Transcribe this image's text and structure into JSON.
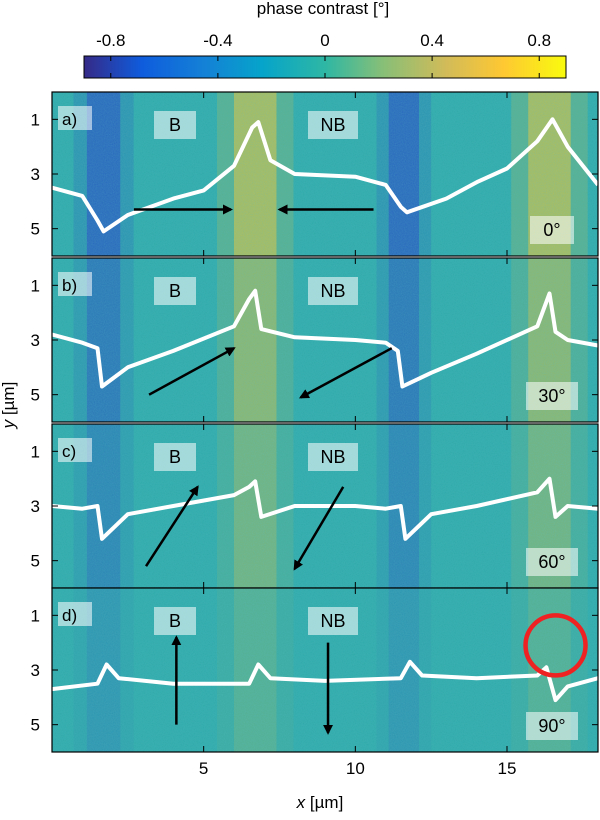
{
  "chart_data": {
    "type": "heatmap",
    "colorbar": {
      "label": "phase contrast [°]",
      "ticks": [
        "-0.8",
        "-0.4",
        "0",
        "0.4",
        "0.8"
      ],
      "range": [
        -0.9,
        0.9
      ],
      "colormap": "parula"
    },
    "xlabel_var": "x",
    "xlabel_unit": " [µm]",
    "ylabel_var": "y",
    "ylabel_unit": " [µm]",
    "x_ticks": [
      "5",
      "10",
      "15"
    ],
    "xlim": [
      0,
      18
    ],
    "y_ticks": [
      "1",
      "3",
      "5"
    ],
    "ylim": [
      0,
      6
    ],
    "panels": [
      {
        "tag": "a)",
        "angle": "0°",
        "label_b": "B",
        "label_nb": "NB",
        "stripe_amp": 1.0,
        "profile": [
          [
            0,
            3.5
          ],
          [
            1,
            3.8
          ],
          [
            1.5,
            4.7
          ],
          [
            1.7,
            5.1
          ],
          [
            2.5,
            4.5
          ],
          [
            4,
            3.9
          ],
          [
            5,
            3.6
          ],
          [
            6,
            2.7
          ],
          [
            6.6,
            1.3
          ],
          [
            6.8,
            1.1
          ],
          [
            7.2,
            2.5
          ],
          [
            8,
            3.0
          ],
          [
            10,
            3.1
          ],
          [
            11,
            3.4
          ],
          [
            11.5,
            4.2
          ],
          [
            11.7,
            4.4
          ],
          [
            13,
            3.9
          ],
          [
            14,
            3.3
          ],
          [
            15,
            2.8
          ],
          [
            16,
            1.8
          ],
          [
            16.5,
            1.0
          ],
          [
            17,
            2.0
          ],
          [
            18,
            3.4
          ]
        ],
        "arrows": [
          [
            2.7,
            4.3,
            5.9,
            4.3
          ],
          [
            10.6,
            4.3,
            7.5,
            4.3
          ]
        ],
        "circle": null
      },
      {
        "tag": "b)",
        "angle": "30°",
        "label_b": "B",
        "label_nb": "NB",
        "stripe_amp": 0.75,
        "profile": [
          [
            0,
            2.8
          ],
          [
            1,
            3.1
          ],
          [
            1.5,
            3.3
          ],
          [
            1.65,
            4.7
          ],
          [
            2.5,
            4.0
          ],
          [
            4,
            3.4
          ],
          [
            6,
            2.5
          ],
          [
            6.5,
            1.5
          ],
          [
            6.7,
            1.2
          ],
          [
            6.9,
            2.6
          ],
          [
            8,
            2.9
          ],
          [
            10,
            3.0
          ],
          [
            11,
            3.1
          ],
          [
            11.4,
            3.4
          ],
          [
            11.55,
            4.7
          ],
          [
            12.5,
            4.2
          ],
          [
            14,
            3.5
          ],
          [
            16,
            2.5
          ],
          [
            16.4,
            1.3
          ],
          [
            16.6,
            2.7
          ],
          [
            17,
            3.0
          ],
          [
            18,
            3.2
          ]
        ],
        "arrows": [
          [
            3.2,
            5.0,
            6.0,
            3.3
          ],
          [
            11.2,
            3.3,
            8.2,
            5.1
          ]
        ],
        "circle": null
      },
      {
        "tag": "c)",
        "angle": "60°",
        "label_b": "B",
        "label_nb": "NB",
        "stripe_amp": 0.55,
        "profile": [
          [
            0,
            3.0
          ],
          [
            1,
            3.1
          ],
          [
            1.5,
            3.0
          ],
          [
            1.65,
            4.2
          ],
          [
            2.5,
            3.3
          ],
          [
            4,
            3.0
          ],
          [
            6,
            2.6
          ],
          [
            6.5,
            2.3
          ],
          [
            6.7,
            2.1
          ],
          [
            6.9,
            3.4
          ],
          [
            8,
            3.0
          ],
          [
            10,
            3.0
          ],
          [
            11,
            3.1
          ],
          [
            11.5,
            3.0
          ],
          [
            11.65,
            4.2
          ],
          [
            12.5,
            3.3
          ],
          [
            14,
            3.0
          ],
          [
            16,
            2.5
          ],
          [
            16.4,
            2.0
          ],
          [
            16.6,
            3.4
          ],
          [
            17,
            3.0
          ],
          [
            18,
            3.1
          ]
        ],
        "arrows": [
          [
            3.1,
            5.2,
            4.8,
            2.3
          ],
          [
            9.6,
            2.3,
            8.0,
            5.3
          ]
        ],
        "circle": null
      },
      {
        "tag": "d)",
        "angle": "90°",
        "label_b": "B",
        "label_nb": "NB",
        "stripe_amp": 0.3,
        "profile": [
          [
            0,
            3.7
          ],
          [
            1.5,
            3.5
          ],
          [
            1.8,
            2.8
          ],
          [
            2.2,
            3.3
          ],
          [
            4,
            3.5
          ],
          [
            6.5,
            3.5
          ],
          [
            6.8,
            2.8
          ],
          [
            7.2,
            3.3
          ],
          [
            9,
            3.4
          ],
          [
            11.5,
            3.3
          ],
          [
            11.8,
            2.7
          ],
          [
            12.2,
            3.2
          ],
          [
            14,
            3.3
          ],
          [
            16,
            3.2
          ],
          [
            16.3,
            2.9
          ],
          [
            16.6,
            4.1
          ],
          [
            17,
            3.6
          ],
          [
            18,
            3.3
          ]
        ],
        "arrows": [
          [
            4.1,
            5.0,
            4.1,
            1.8
          ],
          [
            9.1,
            2.0,
            9.1,
            5.3
          ]
        ],
        "circle": [
          16.6,
          2.1
        ]
      }
    ]
  }
}
